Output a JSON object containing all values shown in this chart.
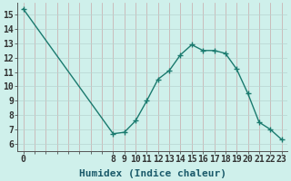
{
  "x": [
    0,
    8,
    9,
    10,
    11,
    12,
    13,
    14,
    15,
    16,
    17,
    18,
    19,
    20,
    21,
    22,
    23
  ],
  "y": [
    15.4,
    6.7,
    6.8,
    7.6,
    9.0,
    10.5,
    11.1,
    12.2,
    12.9,
    12.5,
    12.5,
    12.3,
    11.2,
    9.5,
    7.5,
    7.0,
    6.3
  ],
  "line_color": "#1a7a6e",
  "marker": "+",
  "marker_size": 4,
  "bg_color": "#cff0eb",
  "vgrid_color": "#c8a8a8",
  "hgrid_color": "#b8d4d0",
  "xlabel": "Humidex (Indice chaleur)",
  "xlabel_fontsize": 8,
  "ylabel_ticks": [
    6,
    7,
    8,
    9,
    10,
    11,
    12,
    13,
    14,
    15
  ],
  "xlim": [
    -0.5,
    23.5
  ],
  "ylim": [
    5.5,
    15.8
  ],
  "tick_fontsize": 7,
  "line_width": 1.0
}
